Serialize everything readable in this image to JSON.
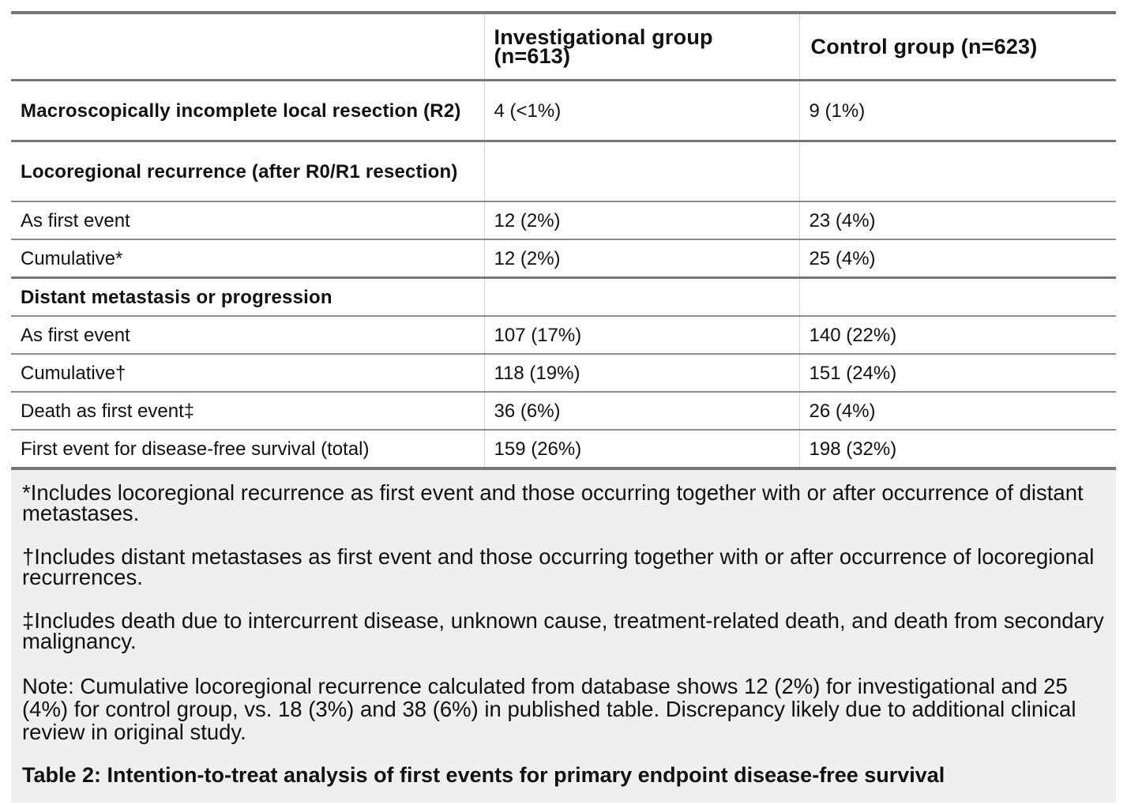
{
  "table": {
    "headers": [
      "",
      "Investigational group (n=613)",
      "Control group (n=623)"
    ],
    "rows": [
      {
        "label": "Macroscopically incomplete local resection (R2)",
        "investigational": "4 (<1%)",
        "control": "9 (1%)"
      },
      {
        "label": "Locoregional recurrence (after R0/R1 resection)",
        "investigational": "",
        "control": ""
      },
      {
        "label": "As first event",
        "investigational": "12 (2%)",
        "control": "23 (4%)"
      },
      {
        "label": "Cumulative*",
        "investigational": "12 (2%)",
        "control": "25 (4%)"
      },
      {
        "label": "Distant metastasis or progression",
        "investigational": "",
        "control": ""
      },
      {
        "label": "As first event",
        "investigational": "107 (17%)",
        "control": "140 (22%)"
      },
      {
        "label": "Cumulative†",
        "investigational": "118 (19%)",
        "control": "151 (24%)"
      },
      {
        "label": "Death as first event‡",
        "investigational": "36 (6%)",
        "control": "26 (4%)"
      },
      {
        "label": "First event for disease-free survival (total)",
        "investigational": "159 (26%)",
        "control": "198 (32%)"
      }
    ]
  },
  "footnotes": [
    "*Includes locoregional recurrence as first event and those occurring together with or after occurrence of distant metastases.",
    "†Includes distant metastases as first event and those occurring together with or after occurrence of locoregional recurrences.",
    "‡Includes death due to intercurrent disease, unknown cause, treatment-related death, and death from secondary malignancy."
  ],
  "note": "Note: Cumulative locoregional recurrence calculated from database shows 12 (2%) for investigational and 25 (4%) for control group, vs. 18 (3%) and 38 (6%) in published table. Discrepancy likely due to additional clinical review in original study.",
  "caption": "Table 2: Intention-to-treat analysis of first events for primary endpoint disease-free survival"
}
